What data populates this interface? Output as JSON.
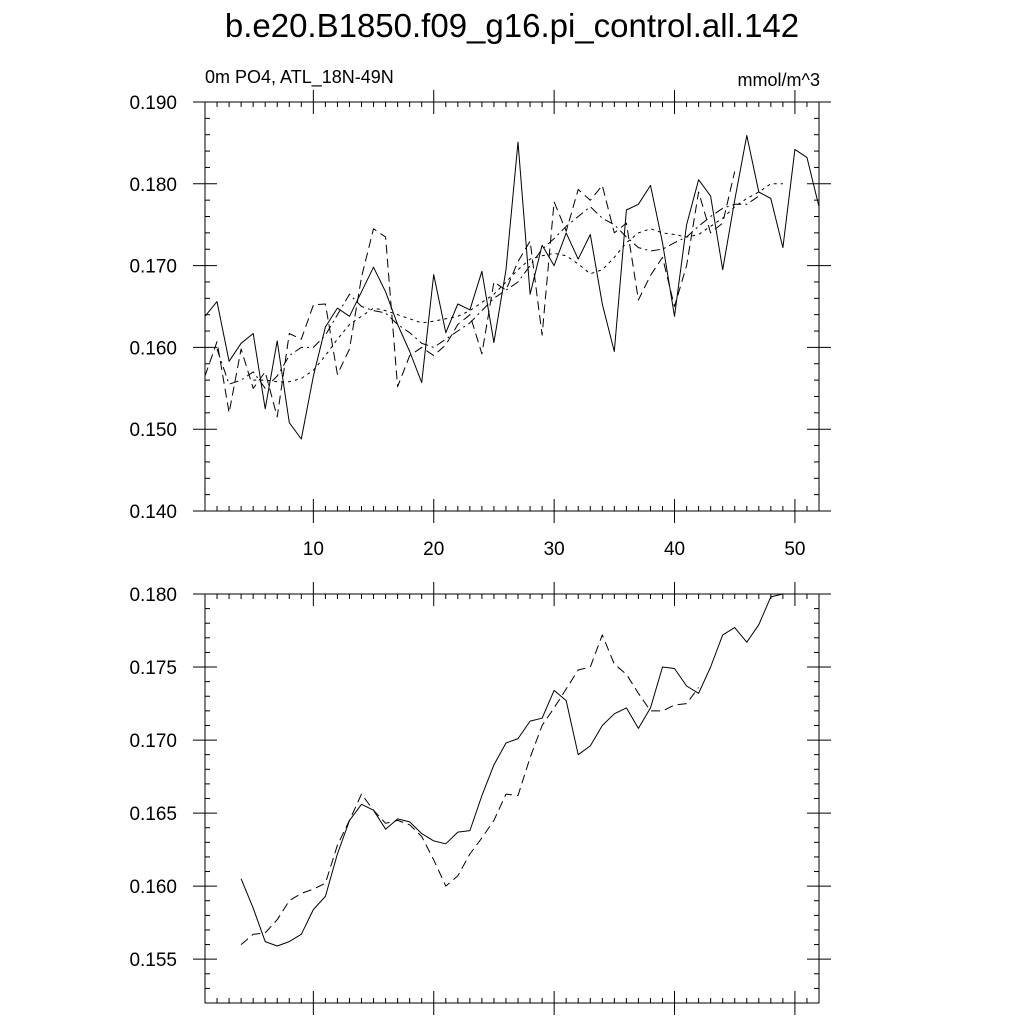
{
  "title": "b.e20.B1850.f09_g16.pi_control.all.142",
  "subtitle_left": "0m PO4, ATL_18N-49N",
  "subtitle_right": "mmol/m^3",
  "chart_data": [
    {
      "type": "line",
      "title": "",
      "xlabel": "",
      "ylabel": "",
      "xlim": [
        1,
        52
      ],
      "ylim": [
        0.14,
        0.19
      ],
      "x_ticks": [
        10,
        20,
        30,
        40,
        50
      ],
      "x_tick_labels": [
        "10",
        "20",
        "30",
        "40",
        "50"
      ],
      "y_ticks": [
        0.14,
        0.15,
        0.16,
        0.17,
        0.18,
        0.19
      ],
      "y_tick_labels": [
        "0.140",
        "0.150",
        "0.160",
        "0.170",
        "0.180",
        "0.190"
      ],
      "grid": false,
      "series": [
        {
          "dash": "solid",
          "x": [
            1,
            2,
            3,
            4,
            5,
            6,
            7,
            8,
            9,
            10,
            11,
            12,
            13,
            14,
            15,
            16,
            17,
            18,
            19,
            20,
            21,
            22,
            23,
            24,
            25,
            26,
            27,
            28,
            29,
            30,
            31,
            32,
            33,
            34,
            35,
            36,
            37,
            38,
            39,
            40,
            41,
            42,
            43,
            44,
            45,
            46,
            47,
            48,
            49,
            50,
            51,
            52
          ],
          "values": [
            0.1638,
            0.1656,
            0.1583,
            0.1605,
            0.1617,
            0.1525,
            0.1608,
            0.1508,
            0.1488,
            0.1565,
            0.1625,
            0.1648,
            0.1638,
            0.1668,
            0.1698,
            0.1668,
            0.1628,
            0.1595,
            0.1557,
            0.1689,
            0.1618,
            0.1653,
            0.1646,
            0.1693,
            0.1606,
            0.1695,
            0.1851,
            0.1665,
            0.1725,
            0.17,
            0.174,
            0.1708,
            0.1738,
            0.1653,
            0.1595,
            0.1768,
            0.1775,
            0.1798,
            0.1728,
            0.1638,
            0.175,
            0.1805,
            0.1785,
            0.1695,
            0.178,
            0.1859,
            0.179,
            0.1782,
            0.1722,
            0.1842,
            0.1832,
            0.1772
          ]
        },
        {
          "dash": "dashed",
          "x": [
            1,
            2,
            3,
            4,
            5,
            6,
            7,
            8,
            9,
            10,
            11,
            12,
            13,
            14,
            15,
            16,
            17,
            18,
            19,
            20,
            21,
            22,
            23,
            24,
            25,
            26,
            27,
            28,
            29,
            30,
            31,
            32,
            33,
            34,
            35,
            36,
            37,
            38,
            39,
            40,
            41,
            42,
            43,
            44,
            45
          ],
          "values": [
            0.1565,
            0.1607,
            0.152,
            0.1598,
            0.155,
            0.157,
            0.1515,
            0.1617,
            0.161,
            0.1652,
            0.1653,
            0.1567,
            0.1598,
            0.1686,
            0.1745,
            0.1735,
            0.1552,
            0.159,
            0.16,
            0.159,
            0.1603,
            0.1628,
            0.164,
            0.1592,
            0.168,
            0.167,
            0.1705,
            0.173,
            0.1615,
            0.1778,
            0.1742,
            0.1793,
            0.178,
            0.1798,
            0.174,
            0.1752,
            0.1658,
            0.1688,
            0.171,
            0.165,
            0.17,
            0.179,
            0.174,
            0.1752,
            0.1815
          ]
        },
        {
          "dash": "dash-dot",
          "x": [
            2,
            3,
            4,
            5,
            6,
            7,
            8,
            9,
            10,
            11,
            12,
            13,
            14,
            15,
            16,
            17,
            18,
            19,
            20,
            21,
            22,
            23,
            24,
            25,
            26,
            27,
            28,
            29,
            30,
            31,
            32,
            33,
            34,
            35,
            36,
            37,
            38,
            39,
            40,
            41,
            42,
            43,
            44,
            45,
            46,
            47
          ],
          "values": [
            0.1598,
            0.1555,
            0.156,
            0.157,
            0.155,
            0.1565,
            0.159,
            0.16,
            0.16,
            0.1615,
            0.164,
            0.1665,
            0.165,
            0.1645,
            0.1642,
            0.1628,
            0.1618,
            0.1605,
            0.16,
            0.161,
            0.162,
            0.163,
            0.1645,
            0.166,
            0.167,
            0.168,
            0.17,
            0.172,
            0.1733,
            0.1748,
            0.176,
            0.1772,
            0.1758,
            0.175,
            0.1735,
            0.1722,
            0.1718,
            0.172,
            0.1728,
            0.1735,
            0.1748,
            0.176,
            0.177,
            0.1775,
            0.1775,
            0.1785
          ]
        },
        {
          "dash": "dotted",
          "x": [
            5,
            6,
            7,
            8,
            9,
            10,
            11,
            12,
            13,
            14,
            15,
            16,
            17,
            18,
            19,
            20,
            21,
            22,
            23,
            24,
            25,
            26,
            27,
            28,
            29,
            30,
            31,
            32,
            33,
            34,
            35,
            36,
            37,
            38,
            39,
            40,
            41,
            42,
            43,
            44,
            45,
            46,
            47,
            48,
            49
          ],
          "values": [
            0.156,
            0.156,
            0.1558,
            0.1558,
            0.1562,
            0.1572,
            0.159,
            0.161,
            0.1628,
            0.1638,
            0.1648,
            0.1645,
            0.164,
            0.1635,
            0.163,
            0.1632,
            0.1635,
            0.1638,
            0.1645,
            0.1655,
            0.1665,
            0.168,
            0.1695,
            0.1708,
            0.1712,
            0.1715,
            0.1712,
            0.1702,
            0.169,
            0.1695,
            0.171,
            0.1728,
            0.174,
            0.1745,
            0.174,
            0.1738,
            0.1735,
            0.1738,
            0.1748,
            0.1758,
            0.1772,
            0.1782,
            0.179,
            0.18,
            0.18
          ]
        }
      ]
    },
    {
      "type": "line",
      "title": "",
      "xlabel": "",
      "ylabel": "",
      "xlim": [
        1,
        52
      ],
      "ylim": [
        0.152,
        0.18
      ],
      "x_ticks": [
        10,
        20,
        30,
        40,
        50
      ],
      "y_ticks": [
        0.155,
        0.16,
        0.165,
        0.17,
        0.175,
        0.18
      ],
      "y_tick_labels": [
        "0.155",
        "0.160",
        "0.165",
        "0.170",
        "0.175",
        "0.180"
      ],
      "grid": false,
      "series": [
        {
          "dash": "solid",
          "x": [
            4,
            5,
            6,
            7,
            8,
            9,
            10,
            11,
            12,
            13,
            14,
            15,
            16,
            17,
            18,
            19,
            20,
            21,
            22,
            23,
            24,
            25,
            26,
            27,
            28,
            29,
            30,
            31,
            32,
            33,
            34,
            35,
            36,
            37,
            38,
            39,
            40,
            41,
            42,
            43,
            44,
            45,
            46,
            47,
            48,
            49
          ],
          "values": [
            0.1605,
            0.1585,
            0.1562,
            0.1559,
            0.1562,
            0.1567,
            0.1584,
            0.1593,
            0.1622,
            0.1645,
            0.1656,
            0.1652,
            0.1639,
            0.1646,
            0.1644,
            0.1636,
            0.1631,
            0.1629,
            0.1637,
            0.1638,
            0.1662,
            0.1683,
            0.1698,
            0.1701,
            0.1713,
            0.1715,
            0.1734,
            0.1727,
            0.169,
            0.1696,
            0.171,
            0.1718,
            0.1722,
            0.1708,
            0.1722,
            0.175,
            0.1749,
            0.1737,
            0.1732,
            0.175,
            0.1772,
            0.1777,
            0.1767,
            0.1779,
            0.1798,
            0.18
          ]
        },
        {
          "dash": "dashed",
          "x": [
            4,
            5,
            6,
            7,
            8,
            9,
            10,
            11,
            12,
            13,
            14,
            15,
            16,
            17,
            18,
            19,
            20,
            21,
            22,
            23,
            24,
            25,
            26,
            27,
            28,
            29,
            30,
            31,
            32,
            33,
            34,
            35,
            36,
            37,
            38,
            39,
            40,
            41,
            42
          ],
          "values": [
            0.156,
            0.1567,
            0.1568,
            0.1577,
            0.159,
            0.1595,
            0.1598,
            0.1602,
            0.1628,
            0.1645,
            0.1663,
            0.1652,
            0.1643,
            0.1645,
            0.1642,
            0.1634,
            0.1618,
            0.16,
            0.1607,
            0.1622,
            0.1633,
            0.1645,
            0.1663,
            0.1662,
            0.1688,
            0.171,
            0.1722,
            0.1735,
            0.1748,
            0.175,
            0.1772,
            0.1752,
            0.1745,
            0.1732,
            0.172,
            0.172,
            0.1724,
            0.1725,
            0.1736
          ]
        }
      ]
    }
  ]
}
